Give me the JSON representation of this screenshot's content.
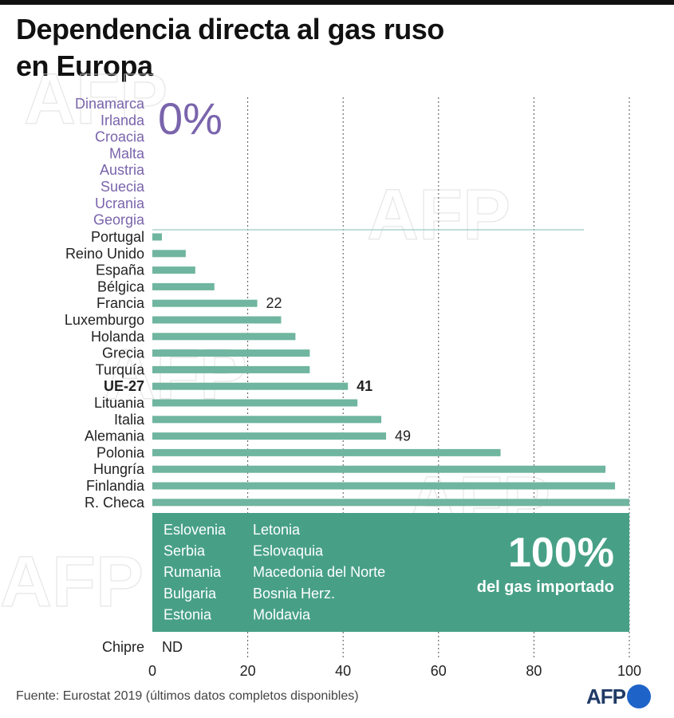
{
  "title": [
    "Dependencia directa al gas ruso",
    "en Europa"
  ],
  "source": "Fuente: Eurostat 2019 (últimos datos completos disponibles)",
  "logo": "AFP",
  "watermark": "AFP",
  "colors": {
    "bar": "#6fb59f",
    "panel": "#47a086",
    "zero": "#7a64ac",
    "grid": "#555555",
    "divider": "#9cc9c6"
  },
  "chart_data": {
    "type": "bar",
    "orientation": "horizontal",
    "title": "Dependencia directa al gas ruso en Europa",
    "xlim": [
      0,
      100
    ],
    "xticks": [
      0,
      20,
      40,
      60,
      80,
      100
    ],
    "grid": true,
    "zero_group": {
      "label": "0%",
      "countries": [
        "Dinamarca",
        "Irlanda",
        "Croacia",
        "Malta",
        "Austria",
        "Suecia",
        "Ucrania",
        "Georgia"
      ]
    },
    "categories": [
      "Portugal",
      "Reino Unido",
      "España",
      "Bélgica",
      "Francia",
      "Luxemburgo",
      "Holanda",
      "Grecia",
      "Turquía",
      "UE-27",
      "Lituania",
      "Italia",
      "Alemania",
      "Polonia",
      "Hungría",
      "Finlandia",
      "R. Checa"
    ],
    "values": [
      2,
      7,
      9,
      13,
      22,
      27,
      30,
      33,
      33,
      41,
      43,
      48,
      49,
      73,
      95,
      97,
      100
    ],
    "data_labels": [
      {
        "category": "Francia",
        "text": "22"
      },
      {
        "category": "UE-27",
        "text": "41"
      },
      {
        "category": "Alemania",
        "text": "49"
      }
    ],
    "highlight": "UE-27",
    "full_group": {
      "label": "100%",
      "sublabel": "del gas importado",
      "countries": [
        "Eslovenia",
        "Serbia",
        "Rumania",
        "Bulgaria",
        "Estonia",
        "Letonia",
        "Eslovaquia",
        "Macedonia del Norte",
        "Bosnia Herz.",
        "Moldavia"
      ]
    },
    "no_data": {
      "country": "Chipre",
      "label": "ND"
    }
  }
}
